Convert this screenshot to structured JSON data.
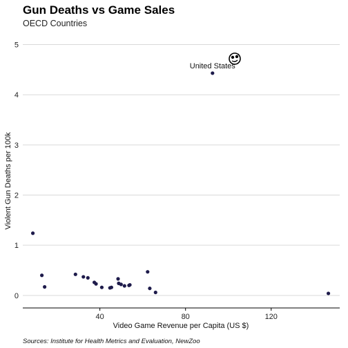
{
  "chart_data": {
    "type": "scatter",
    "title": "Gun Deaths vs Game Sales",
    "subtitle": "OECD Countries",
    "xlabel": "Video Game Revenue per Capita (US $)",
    "ylabel": "Violent Gun Deaths per 100k",
    "caption": "Sources: Institute for Health Metrics and Evaluation, NewZoo",
    "xlim": [
      4,
      152
    ],
    "ylim": [
      -0.25,
      5.2
    ],
    "x_ticks": [
      40,
      80,
      120
    ],
    "y_ticks": [
      0,
      1,
      2,
      3,
      4,
      5
    ],
    "grid": "horizontal",
    "point_color": "#1e1b4b",
    "annotations": [
      {
        "text": "United States",
        "x": 92.6,
        "y": 4.43
      }
    ],
    "points": [
      {
        "x": 92.6,
        "y": 4.43
      },
      {
        "x": 8.7,
        "y": 1.24
      },
      {
        "x": 12.9,
        "y": 0.4
      },
      {
        "x": 14.2,
        "y": 0.17
      },
      {
        "x": 28.6,
        "y": 0.42
      },
      {
        "x": 32.3,
        "y": 0.37
      },
      {
        "x": 34.4,
        "y": 0.35
      },
      {
        "x": 37.4,
        "y": 0.26
      },
      {
        "x": 38.2,
        "y": 0.23
      },
      {
        "x": 40.9,
        "y": 0.16
      },
      {
        "x": 44.7,
        "y": 0.15
      },
      {
        "x": 45.4,
        "y": 0.16
      },
      {
        "x": 48.5,
        "y": 0.33
      },
      {
        "x": 48.8,
        "y": 0.24
      },
      {
        "x": 49.9,
        "y": 0.22
      },
      {
        "x": 51.5,
        "y": 0.19
      },
      {
        "x": 53.6,
        "y": 0.2
      },
      {
        "x": 54.0,
        "y": 0.21
      },
      {
        "x": 62.3,
        "y": 0.47
      },
      {
        "x": 63.3,
        "y": 0.14
      },
      {
        "x": 66.0,
        "y": 0.06
      },
      {
        "x": 146.7,
        "y": 0.04
      }
    ]
  }
}
